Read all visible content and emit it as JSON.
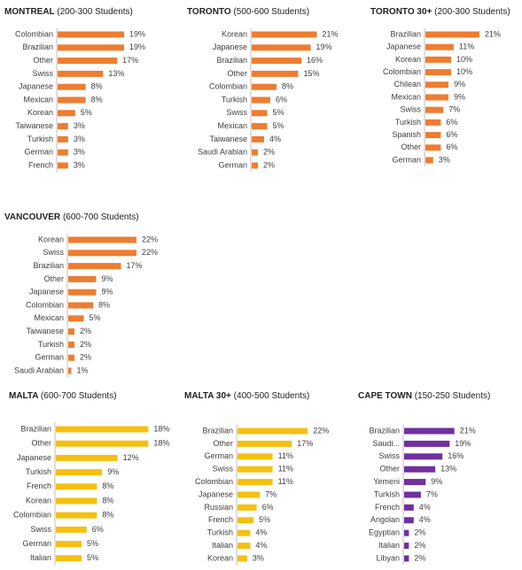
{
  "chart_data": [
    {
      "type": "barh",
      "title": "MONTREAL",
      "subtitle": "(200-300 Students)",
      "color": "#ed7d31",
      "categories": [
        "Colombian",
        "Brazilian",
        "Other",
        "Swiss",
        "Japanese",
        "Mexican",
        "Korean",
        "Taiwanese",
        "Turkish",
        "German",
        "French"
      ],
      "values": [
        19,
        19,
        17,
        13,
        8,
        8,
        5,
        3,
        3,
        3,
        3
      ],
      "value_labels": [
        "19%",
        "19%",
        "17%",
        "13%",
        "8%",
        "8%",
        "5%",
        "3%",
        "3%",
        "3%",
        "3%"
      ]
    },
    {
      "type": "barh",
      "title": "TORONTO",
      "subtitle": "(500-600 Students)",
      "color": "#ed7d31",
      "categories": [
        "Korean",
        "Japanese",
        "Brazilian",
        "Other",
        "Colombian",
        "Turkish",
        "Swiss",
        "Mexican",
        "Taiwanese",
        "Saudi Arabian",
        "German"
      ],
      "values": [
        21,
        19,
        16,
        15,
        8,
        6,
        5,
        5,
        4,
        2,
        2
      ],
      "value_labels": [
        "21%",
        "19%",
        "16%",
        "15%",
        "8%",
        "6%",
        "5%",
        "5%",
        "4%",
        "2%",
        "2%"
      ]
    },
    {
      "type": "barh",
      "title": "TORONTO 30+",
      "subtitle": "(200-300 Students)",
      "color": "#ed7d31",
      "categories": [
        "Brazilian",
        "Japanese",
        "Korean",
        "Colombian",
        "Chilean",
        "Mexican",
        "Swiss",
        "Turkish",
        "Spanish",
        "Other",
        "German"
      ],
      "values": [
        21,
        11,
        10,
        10,
        9,
        9,
        7,
        6,
        6,
        6,
        3
      ],
      "value_labels": [
        "21%",
        "11%",
        "10%",
        "10%",
        "9%",
        "9%",
        "7%",
        "6%",
        "6%",
        "6%",
        "3%"
      ]
    },
    {
      "type": "barh",
      "title": "VANCOUVER",
      "subtitle": "(600-700 Students)",
      "color": "#ed7d31",
      "categories": [
        "Korean",
        "Swiss",
        "Brazilian",
        "Other",
        "Japanese",
        "Colombian",
        "Mexican",
        "Taiwanese",
        "Turkish",
        "German",
        "Saudi Arabian"
      ],
      "values": [
        22,
        22,
        17,
        9,
        9,
        8,
        5,
        2,
        2,
        2,
        1
      ],
      "value_labels": [
        "22%",
        "22%",
        "17%",
        "9%",
        "9%",
        "8%",
        "5%",
        "2%",
        "2%",
        "2%",
        "1%"
      ]
    },
    {
      "type": "barh",
      "title": "MALTA",
      "subtitle": "(600-700 Students)",
      "color": "#f5c012",
      "categories": [
        "Brazilian",
        "Other",
        "Japanese",
        "Turkish",
        "French",
        "Korean",
        "Colombian",
        "Swiss",
        "German",
        "Italian"
      ],
      "values": [
        18,
        18,
        12,
        9,
        8,
        8,
        8,
        6,
        5,
        5
      ],
      "value_labels": [
        "18%",
        "18%",
        "12%",
        "9%",
        "8%",
        "8%",
        "8%",
        "6%",
        "5%",
        "5%"
      ]
    },
    {
      "type": "barh",
      "title": "MALTA 30+",
      "subtitle": "(400-500 Students)",
      "color": "#f5c012",
      "categories": [
        "Brazilian",
        "Other",
        "German",
        "Swiss",
        "Colombian",
        "Japanese",
        "Russian",
        "French",
        "Turkish",
        "Italian",
        "Korean"
      ],
      "values": [
        22,
        17,
        11,
        11,
        11,
        7,
        6,
        5,
        4,
        4,
        3
      ],
      "value_labels": [
        "22%",
        "17%",
        "11%",
        "11%",
        "11%",
        "7%",
        "6%",
        "5%",
        "4%",
        "4%",
        "3%"
      ]
    },
    {
      "type": "barh",
      "title": "CAPE TOWN",
      "subtitle": "(150-250 Students)",
      "color": "#7030a0",
      "categories": [
        "Brazilian",
        "Saudi...",
        "Swiss",
        "Other",
        "Yemeni",
        "Turkish",
        "French",
        "Angolan",
        "Egyptian",
        "Italian",
        "Libyan"
      ],
      "values": [
        21,
        19,
        16,
        13,
        9,
        7,
        4,
        4,
        2,
        2,
        2
      ],
      "value_labels": [
        "21%",
        "19%",
        "16%",
        "13%",
        "9%",
        "7%",
        "4%",
        "4%",
        "2%",
        "2%",
        "2%"
      ]
    }
  ]
}
